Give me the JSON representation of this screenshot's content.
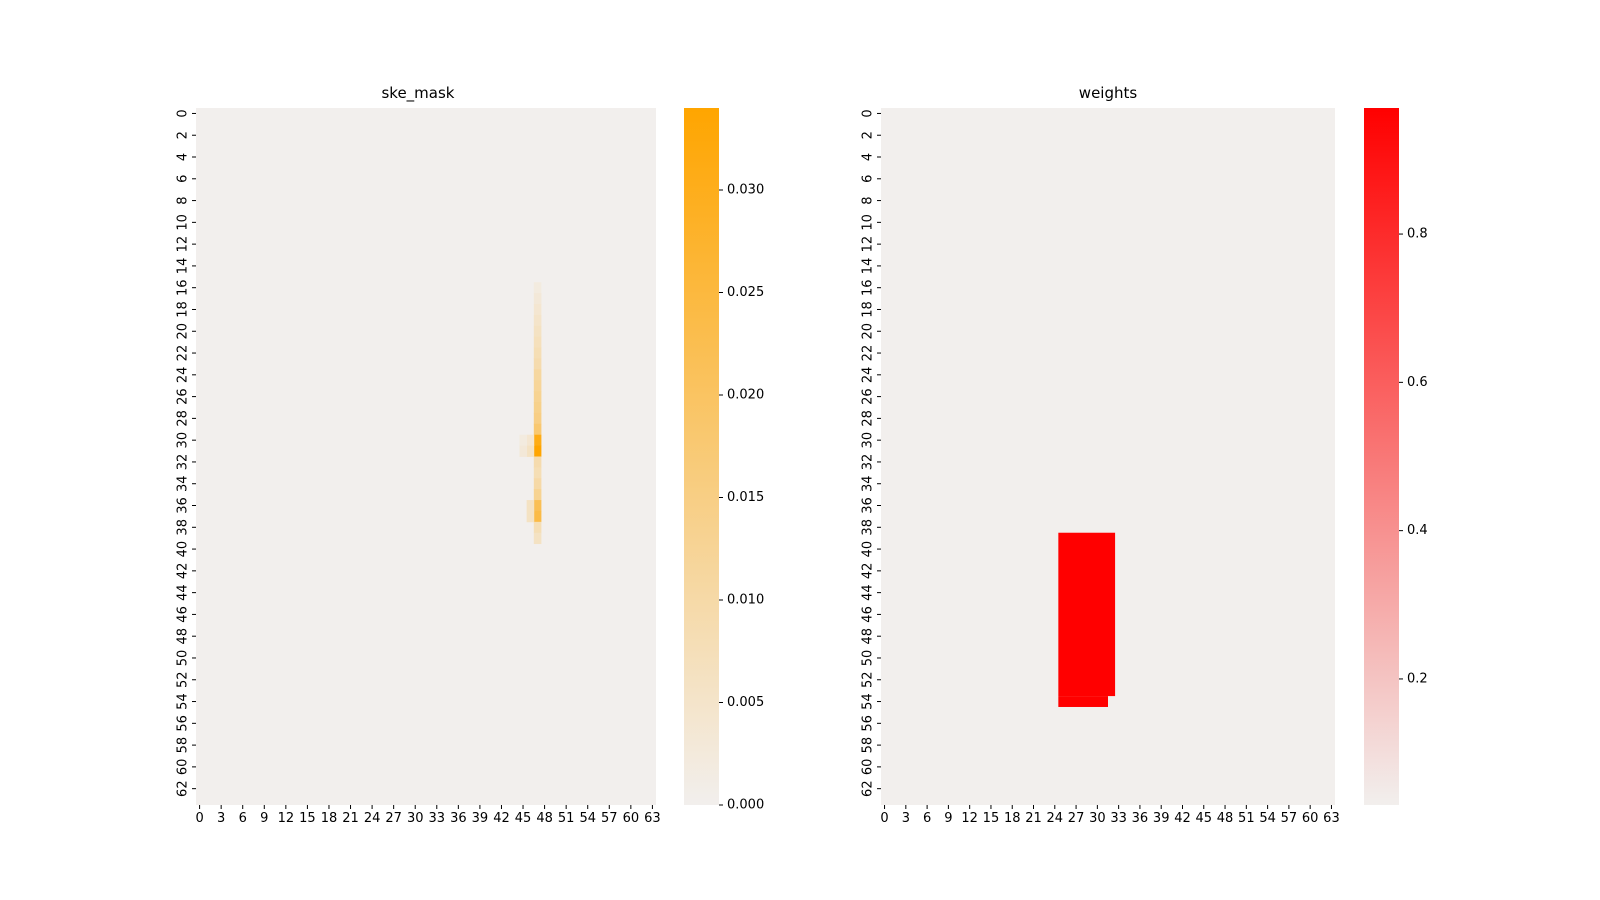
{
  "chart_data": [
    {
      "type": "heatmap",
      "title": "ske_mask",
      "xlabel": "",
      "ylabel": "",
      "grid": false,
      "shape": [
        64,
        64
      ],
      "x_ticks": [
        0,
        3,
        6,
        9,
        12,
        15,
        18,
        21,
        24,
        27,
        30,
        33,
        36,
        39,
        42,
        45,
        48,
        51,
        54,
        57,
        60,
        63
      ],
      "y_ticks": [
        0,
        2,
        4,
        6,
        8,
        10,
        12,
        14,
        16,
        18,
        20,
        22,
        24,
        26,
        28,
        30,
        32,
        34,
        36,
        38,
        40,
        42,
        44,
        46,
        48,
        50,
        52,
        54,
        56,
        58,
        60,
        62
      ],
      "background_value": 0,
      "cmap": [
        "#f2efed",
        "#ffa500"
      ],
      "vmin": 0,
      "vmax": 0.034,
      "colorbar_ticks": [
        "0.000",
        "0.005",
        "0.010",
        "0.015",
        "0.020",
        "0.025",
        "0.030"
      ],
      "colorbar_tick_values": [
        0,
        0.005,
        0.01,
        0.015,
        0.02,
        0.025,
        0.03
      ],
      "cells": [
        {
          "row": 16,
          "col": 47,
          "value": 0.002
        },
        {
          "row": 17,
          "col": 47,
          "value": 0.003
        },
        {
          "row": 18,
          "col": 47,
          "value": 0.004
        },
        {
          "row": 19,
          "col": 47,
          "value": 0.005
        },
        {
          "row": 20,
          "col": 47,
          "value": 0.006
        },
        {
          "row": 21,
          "col": 47,
          "value": 0.007
        },
        {
          "row": 22,
          "col": 47,
          "value": 0.008
        },
        {
          "row": 23,
          "col": 47,
          "value": 0.009
        },
        {
          "row": 24,
          "col": 47,
          "value": 0.011
        },
        {
          "row": 25,
          "col": 47,
          "value": 0.012
        },
        {
          "row": 26,
          "col": 47,
          "value": 0.013
        },
        {
          "row": 27,
          "col": 47,
          "value": 0.014
        },
        {
          "row": 28,
          "col": 47,
          "value": 0.015
        },
        {
          "row": 29,
          "col": 47,
          "value": 0.018
        },
        {
          "row": 30,
          "col": 47,
          "value": 0.031
        },
        {
          "row": 31,
          "col": 47,
          "value": 0.034
        },
        {
          "row": 30,
          "col": 46,
          "value": 0.004
        },
        {
          "row": 31,
          "col": 46,
          "value": 0.006
        },
        {
          "row": 30,
          "col": 45,
          "value": 0.002
        },
        {
          "row": 31,
          "col": 45,
          "value": 0.003
        },
        {
          "row": 32,
          "col": 47,
          "value": 0.009
        },
        {
          "row": 33,
          "col": 47,
          "value": 0.008
        },
        {
          "row": 34,
          "col": 47,
          "value": 0.01
        },
        {
          "row": 35,
          "col": 47,
          "value": 0.013
        },
        {
          "row": 36,
          "col": 47,
          "value": 0.022
        },
        {
          "row": 37,
          "col": 47,
          "value": 0.024
        },
        {
          "row": 36,
          "col": 46,
          "value": 0.006
        },
        {
          "row": 37,
          "col": 46,
          "value": 0.006
        },
        {
          "row": 38,
          "col": 47,
          "value": 0.008
        },
        {
          "row": 39,
          "col": 47,
          "value": 0.006
        }
      ]
    },
    {
      "type": "heatmap",
      "title": "weights",
      "xlabel": "",
      "ylabel": "",
      "grid": false,
      "shape": [
        64,
        64
      ],
      "x_ticks": [
        0,
        3,
        6,
        9,
        12,
        15,
        18,
        21,
        24,
        27,
        30,
        33,
        36,
        39,
        42,
        45,
        48,
        51,
        54,
        57,
        60,
        63
      ],
      "y_ticks": [
        0,
        2,
        4,
        6,
        8,
        10,
        12,
        14,
        16,
        18,
        20,
        22,
        24,
        26,
        28,
        30,
        32,
        34,
        36,
        38,
        40,
        42,
        44,
        46,
        48,
        50,
        52,
        54,
        56,
        58,
        60,
        62
      ],
      "background_value": 0.03,
      "cmap": [
        "#f2efed",
        "#ff0000"
      ],
      "vmin": 0.03,
      "vmax": 0.97,
      "colorbar_ticks": [
        "0.2",
        "0.4",
        "0.6",
        "0.8"
      ],
      "colorbar_tick_values": [
        0.2,
        0.4,
        0.6,
        0.8
      ],
      "regions": [
        {
          "row_start": 39,
          "row_end": 53,
          "col_start": 25,
          "col_end": 32,
          "value": 0.97
        },
        {
          "row_start": 54,
          "row_end": 54,
          "col_start": 25,
          "col_end": 31,
          "value": 0.97
        }
      ]
    }
  ]
}
